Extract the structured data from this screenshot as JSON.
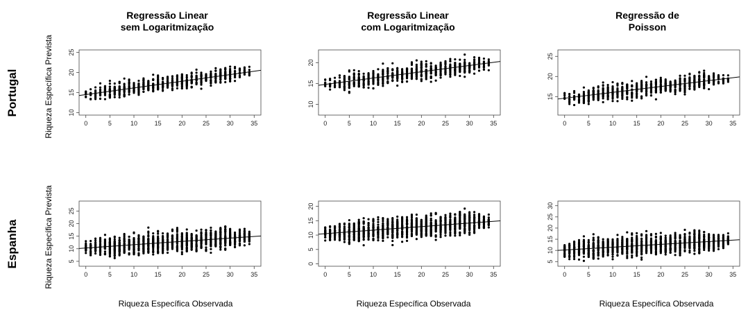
{
  "column_titles": [
    {
      "line1": "Regressão Linear",
      "line2": "sem Logaritmização"
    },
    {
      "line1": "Regressão Linear",
      "line2": "com Logaritmização"
    },
    {
      "line1": "Regressão de",
      "line2": "Poisson"
    }
  ],
  "row_labels": [
    "Portugal",
    "Espanha"
  ],
  "y_axis_label": "Riqueza Específica Prevista",
  "x_axis_label": "Riqueza Específica Observada",
  "chart_data": [
    {
      "type": "scatter",
      "country": "Portugal",
      "model": "Regressão Linear sem Logaritmização",
      "xlim": [
        0,
        35
      ],
      "ylim": [
        10,
        25
      ],
      "xticks": [
        0,
        5,
        10,
        15,
        20,
        25,
        30,
        35
      ],
      "yticks": [
        10,
        15,
        20,
        25
      ],
      "x_range": [
        0,
        34
      ],
      "y_spread": [
        11,
        24.5
      ],
      "fit": {
        "x": [
          0,
          35
        ],
        "y": [
          14.5,
          20.3
        ]
      }
    },
    {
      "type": "scatter",
      "country": "Portugal",
      "model": "Regressão Linear com Logaritmização",
      "xlim": [
        0,
        35
      ],
      "ylim": [
        8,
        22.5
      ],
      "xticks": [
        0,
        5,
        10,
        15,
        20,
        25,
        30,
        35
      ],
      "yticks": [
        10,
        15,
        20
      ],
      "x_range": [
        0,
        34
      ],
      "y_spread": [
        7,
        22.3
      ],
      "fit": {
        "x": [
          0,
          35
        ],
        "y": [
          14.8,
          20.1
        ]
      }
    },
    {
      "type": "scatter",
      "country": "Portugal",
      "model": "Regressão de Poisson",
      "xlim": [
        0,
        35
      ],
      "ylim": [
        11,
        26
      ],
      "xticks": [
        0,
        5,
        10,
        15,
        20,
        25,
        30,
        35
      ],
      "yticks": [
        15,
        20,
        25
      ],
      "x_range": [
        0,
        34
      ],
      "y_spread": [
        11,
        25.8
      ],
      "fit": {
        "x": [
          0,
          35
        ],
        "y": [
          14.6,
          19.7
        ]
      }
    },
    {
      "type": "scatter",
      "country": "Espanha",
      "model": "Regressão Linear sem Logaritmização",
      "xlim": [
        0,
        35
      ],
      "ylim": [
        4,
        28
      ],
      "xticks": [
        0,
        5,
        10,
        15,
        20,
        25,
        30,
        35
      ],
      "yticks": [
        5,
        10,
        15,
        20,
        25
      ],
      "x_range": [
        0,
        34
      ],
      "y_spread": [
        4.5,
        28
      ],
      "fit": {
        "x": [
          0,
          35
        ],
        "y": [
          10.3,
          14.9
        ]
      }
    },
    {
      "type": "scatter",
      "country": "Espanha",
      "model": "Regressão Linear com Logaritmização",
      "xlim": [
        0,
        35
      ],
      "ylim": [
        0,
        21
      ],
      "xticks": [
        0,
        5,
        10,
        15,
        20,
        25,
        30,
        35
      ],
      "yticks": [
        0,
        5,
        10,
        15,
        20
      ],
      "x_range": [
        0,
        34
      ],
      "y_spread": [
        0,
        20.6
      ],
      "fit": {
        "x": [
          0,
          35
        ],
        "y": [
          10.5,
          14.8
        ]
      }
    },
    {
      "type": "scatter",
      "country": "Espanha",
      "model": "Regressão de Poisson",
      "xlim": [
        0,
        35
      ],
      "ylim": [
        4,
        31
      ],
      "xticks": [
        0,
        5,
        10,
        15,
        20,
        25,
        30,
        35
      ],
      "yticks": [
        5,
        10,
        15,
        20,
        25,
        30
      ],
      "x_range": [
        0,
        34
      ],
      "y_spread": [
        5,
        30
      ],
      "fit": {
        "x": [
          0,
          35
        ],
        "y": [
          10.2,
          14.6
        ]
      }
    }
  ]
}
